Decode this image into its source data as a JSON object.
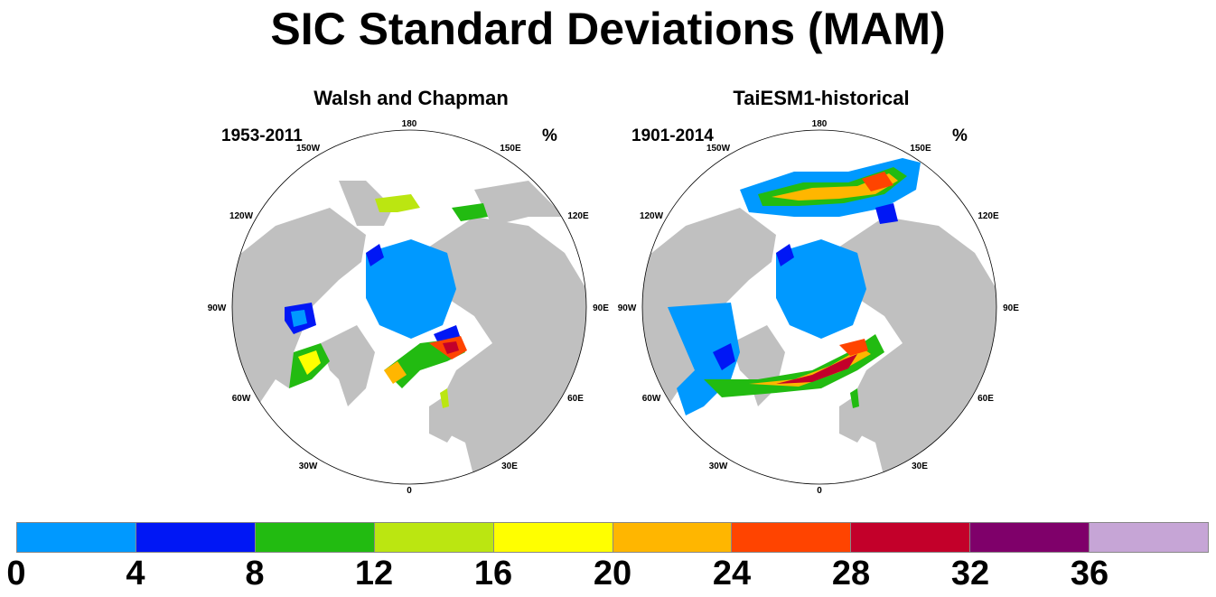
{
  "title": "SIC Standard Deviations (MAM)",
  "panels": [
    {
      "title": "Walsh and Chapman",
      "period": "1953-2011",
      "unit": "%"
    },
    {
      "title": "TaiESM1-historical",
      "period": "1901-2014",
      "unit": "%"
    }
  ],
  "lon_labels": [
    "180",
    "150E",
    "120E",
    "90E",
    "60E",
    "30E",
    "0",
    "30W",
    "60W",
    "90W",
    "120W",
    "150W"
  ],
  "colors": {
    "land": "#c0c0c0",
    "ocean": "#ffffff",
    "bins": [
      "#0099ff",
      "#0017f5",
      "#22bb11",
      "#bbe611",
      "#ffff00",
      "#ffb600",
      "#ff4400",
      "#c3002a",
      "#7f006a",
      "#c6a5d6"
    ]
  },
  "colorbar": {
    "labels": [
      "0",
      "4",
      "8",
      "12",
      "16",
      "20",
      "24",
      "28",
      "32",
      "36"
    ]
  }
}
